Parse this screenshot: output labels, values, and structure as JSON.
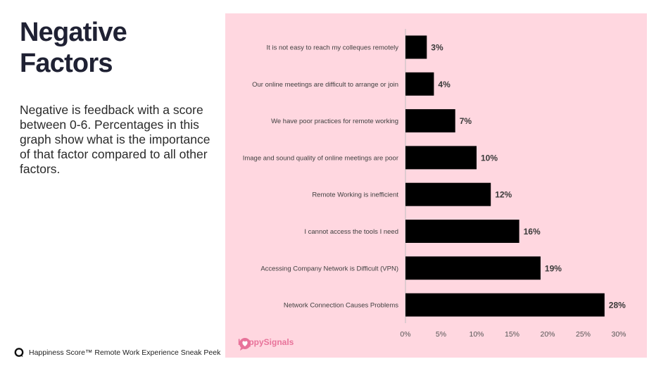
{
  "heading": {
    "title": "Negative Factors",
    "description": "Negative is feedback with a score between 0-6. Percentages in this graph show what is the importance of that factor compared to all other factors."
  },
  "branding": {
    "logo_text": "HappySignals",
    "logo_color": "#e8739a"
  },
  "footer": {
    "text": "Happiness Score™ Remote Work Experience Sneak Peek",
    "icon": "speech-bubble-icon"
  },
  "colors": {
    "panel_background": "#ffd7e0",
    "bar": "#000000",
    "title": "#1f2133"
  },
  "chart_data": {
    "type": "bar",
    "orientation": "horizontal",
    "categories": [
      "It is not easy to reach my colleques remotely",
      "Our online meetings are difficult to arrange or join",
      "We have poor practices for remote working",
      "Image and sound quality of online meetings are poor",
      "Remote Working is inefficient",
      "I cannot access the tools I need",
      "Accessing Company Network is Difficult (VPN)",
      "Network Connection Causes Problems"
    ],
    "values": [
      3,
      4,
      7,
      10,
      12,
      16,
      19,
      28
    ],
    "value_labels": [
      "3%",
      "4%",
      "7%",
      "10%",
      "12%",
      "16%",
      "19%",
      "28%"
    ],
    "xlim": [
      0,
      30
    ],
    "x_ticks": [
      "0%",
      "5%",
      "10%",
      "15%",
      "20%",
      "25%",
      "30%"
    ],
    "title": "",
    "xlabel": "",
    "ylabel": "",
    "grid": false,
    "legend": "none"
  }
}
